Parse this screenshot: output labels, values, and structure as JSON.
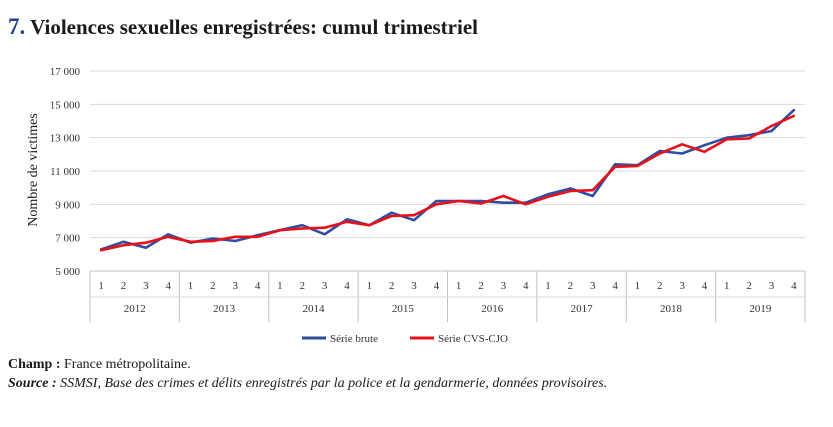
{
  "title": {
    "number": "7.",
    "text": "Violences sexuelles enregistrées: cumul trimestriel"
  },
  "notes": {
    "champ_label": "Champ :",
    "champ_text": "France métropolitaine.",
    "source_label": "Source :",
    "source_text": "SSMSI, Base des crimes et délits enregistrés par la police et la gendarmerie, données provisoires."
  },
  "chart_data": {
    "type": "line",
    "ylabel": "Nombre de victimes",
    "xlabel": "",
    "ylim": [
      5000,
      17000
    ],
    "yticks": [
      5000,
      7000,
      9000,
      11000,
      13000,
      15000,
      17000
    ],
    "ytick_labels": [
      "5 000",
      "7 000",
      "9 000",
      "11 000",
      "13 000",
      "15 000",
      "17 000"
    ],
    "grid": "horizontal",
    "legend": "bottom",
    "years": [
      "2012",
      "2013",
      "2014",
      "2015",
      "2016",
      "2017",
      "2018",
      "2019"
    ],
    "quarters": [
      "1",
      "2",
      "3",
      "4"
    ],
    "series": [
      {
        "name": "Série brute",
        "color": "#2e4f9e",
        "values": [
          6300,
          6750,
          6400,
          7200,
          6700,
          6950,
          6800,
          7150,
          7450,
          7750,
          7200,
          8100,
          7750,
          8500,
          8050,
          9200,
          9200,
          9200,
          9100,
          9100,
          9600,
          9950,
          9500,
          11400,
          11350,
          12200,
          12050,
          12550,
          13000,
          13150,
          13400,
          14650
        ]
      },
      {
        "name": "Série CVS-CJO",
        "color": "#e8101b",
        "values": [
          6250,
          6550,
          6700,
          7050,
          6750,
          6800,
          7050,
          7050,
          7450,
          7550,
          7600,
          7950,
          7750,
          8300,
          8350,
          9000,
          9200,
          9050,
          9500,
          9000,
          9450,
          9800,
          9850,
          11250,
          11300,
          12050,
          12600,
          12150,
          12900,
          12950,
          13700,
          14300
        ]
      }
    ]
  }
}
